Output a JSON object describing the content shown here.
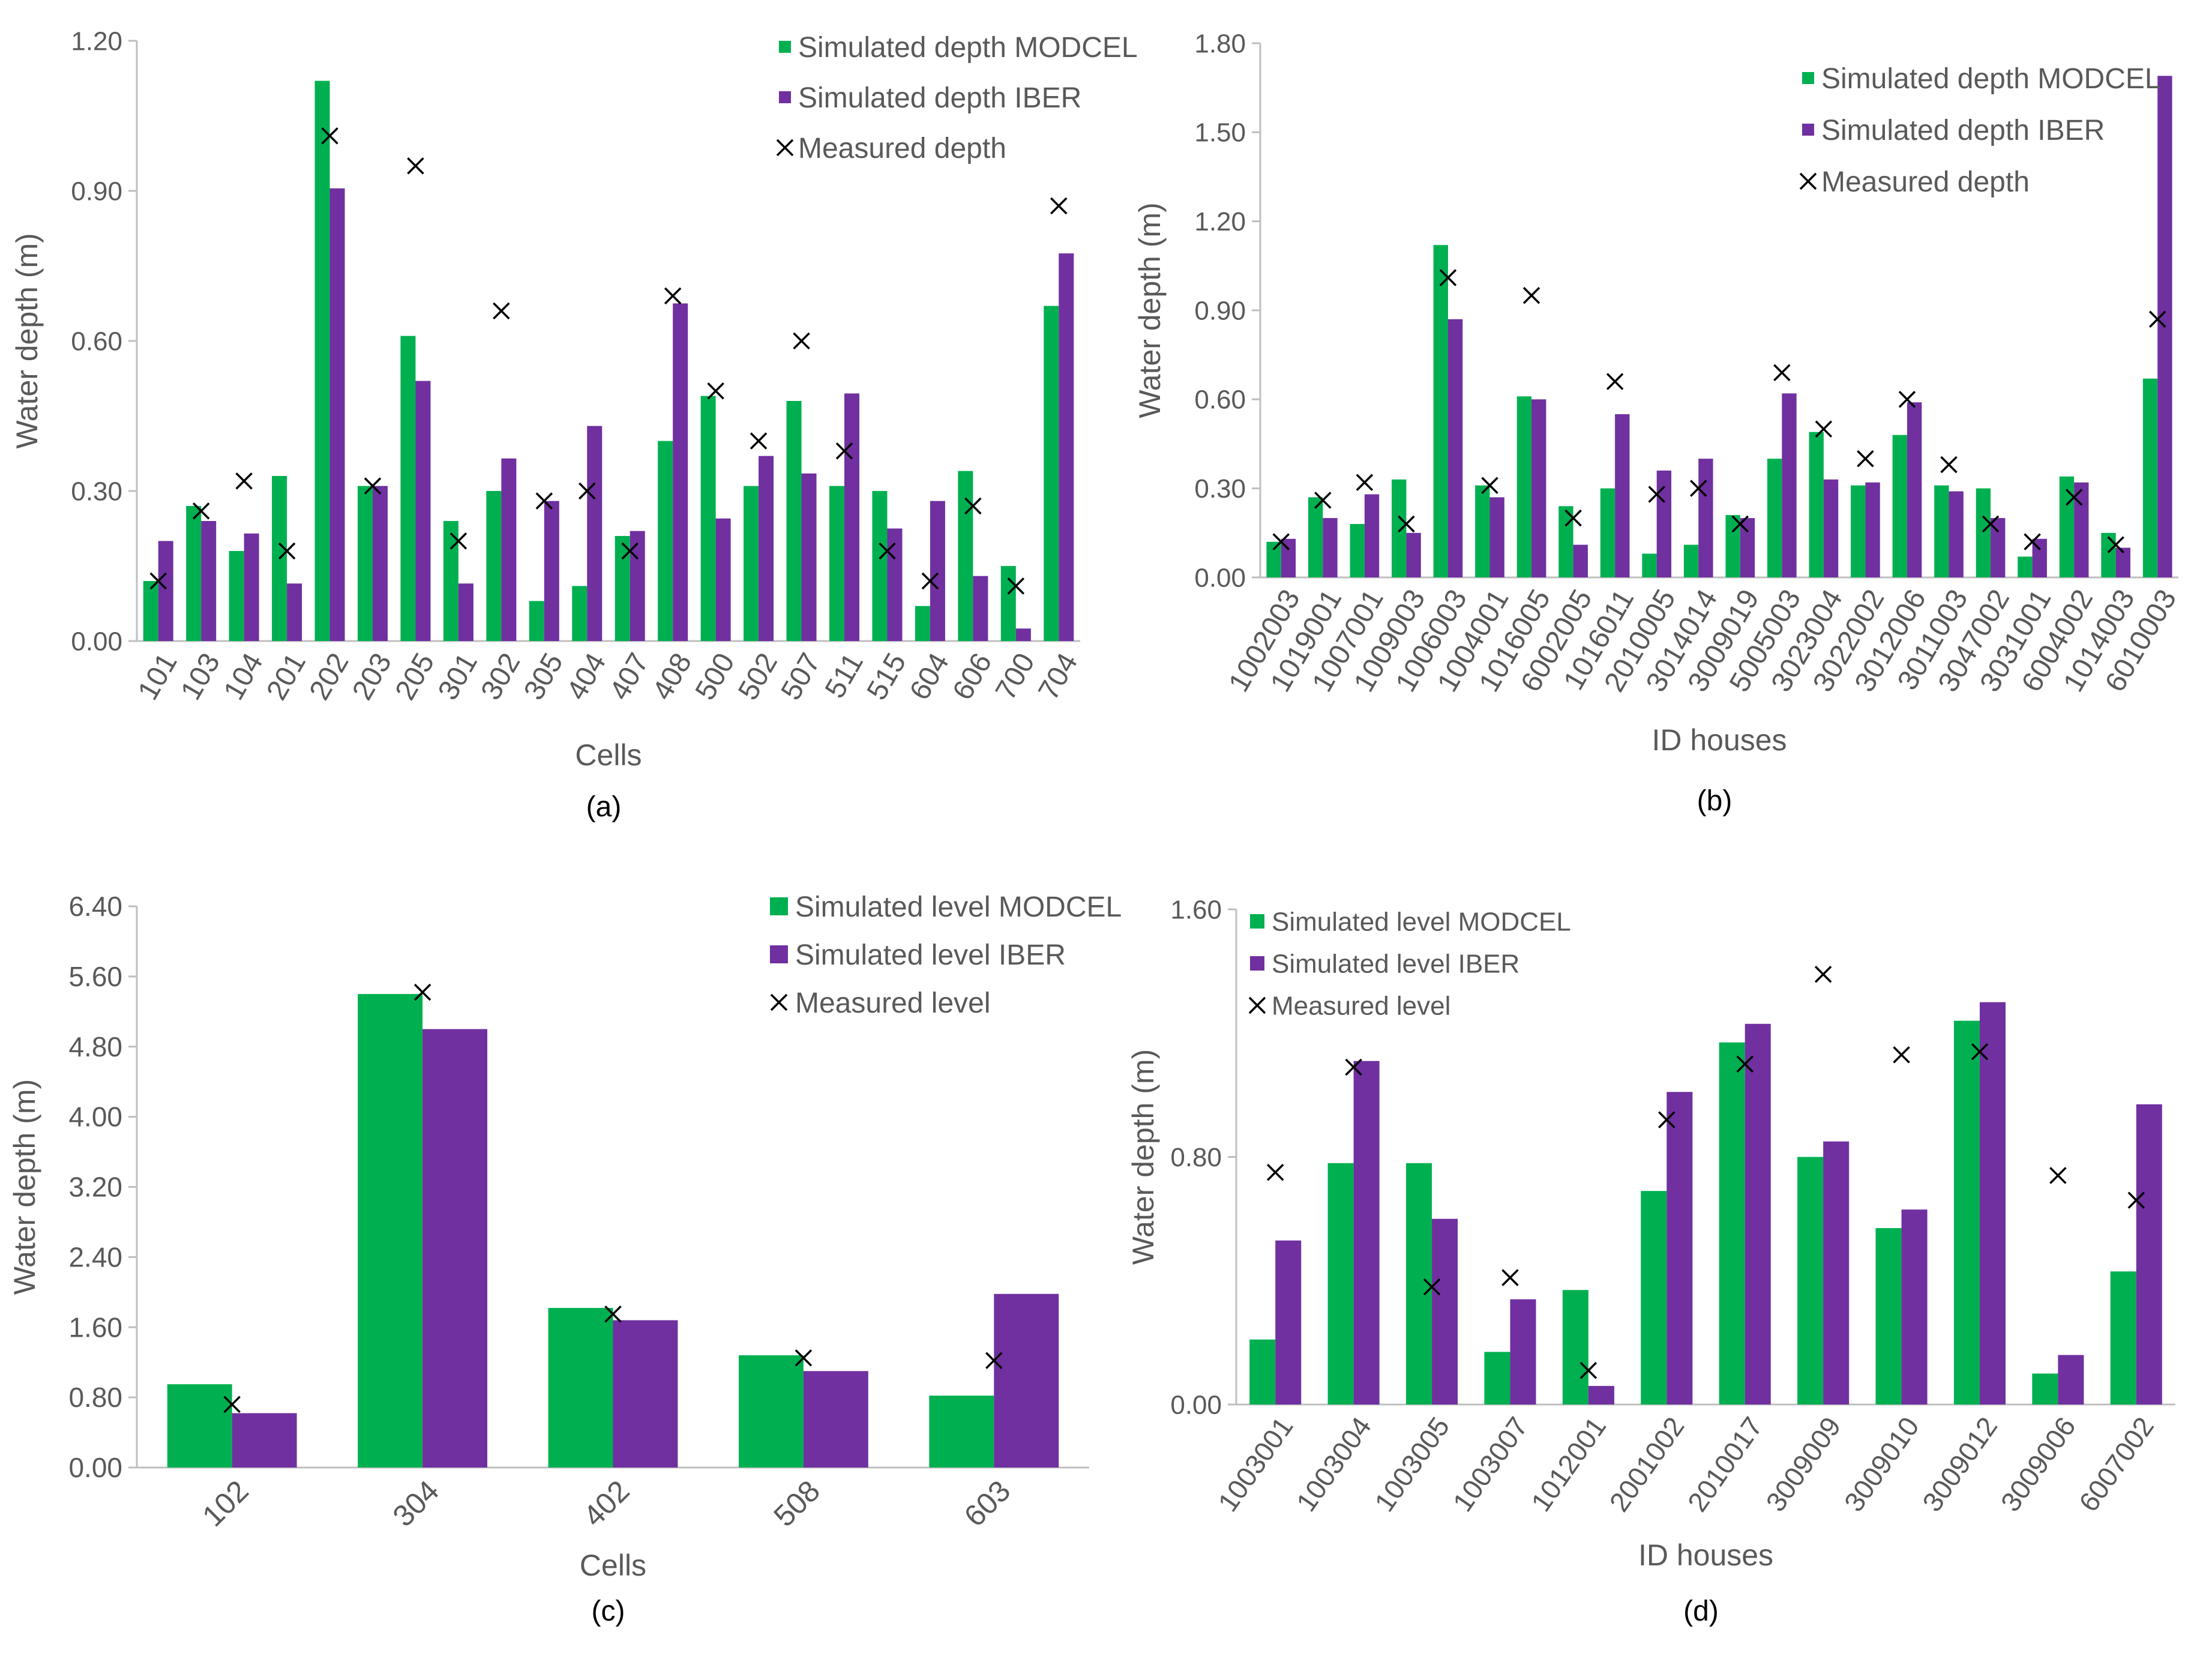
{
  "colors": {
    "modcel": "#00B050",
    "iber": "#7030A0",
    "axis": "#BFBFBF",
    "text": "#595959",
    "marker": "#000000"
  },
  "chart_data": [
    {
      "panel": "(a)",
      "type": "bar",
      "xlabel": "Cells",
      "ylabel": "Water depth (m)",
      "ylim": [
        0,
        1.2
      ],
      "yticks": [
        "0.00",
        "0.30",
        "0.60",
        "0.90",
        "1.20"
      ],
      "categories": [
        "101",
        "103",
        "104",
        "201",
        "202",
        "203",
        "205",
        "301",
        "302",
        "305",
        "404",
        "407",
        "408",
        "500",
        "502",
        "507",
        "511",
        "515",
        "604",
        "606",
        "700",
        "704"
      ],
      "series": [
        {
          "name": "Simulated depth MODCEL",
          "values": [
            0.12,
            0.27,
            0.18,
            0.33,
            1.12,
            0.31,
            0.61,
            0.24,
            0.3,
            0.08,
            0.11,
            0.21,
            0.4,
            0.49,
            0.31,
            0.48,
            0.31,
            0.3,
            0.07,
            0.34,
            0.15,
            0.67
          ]
        },
        {
          "name": "Simulated depth IBER",
          "values": [
            0.2,
            0.24,
            0.215,
            0.115,
            0.905,
            0.31,
            0.52,
            0.115,
            0.365,
            0.28,
            0.43,
            0.22,
            0.675,
            0.245,
            0.37,
            0.335,
            0.495,
            0.225,
            0.28,
            0.13,
            0.025,
            0.775
          ]
        },
        {
          "name": "Measured depth",
          "values": [
            0.12,
            0.26,
            0.32,
            0.18,
            1.01,
            0.31,
            0.95,
            0.2,
            0.66,
            0.28,
            0.3,
            0.18,
            0.69,
            0.5,
            0.4,
            0.6,
            0.38,
            0.18,
            0.12,
            0.27,
            0.11,
            0.87
          ]
        }
      ]
    },
    {
      "panel": "(b)",
      "type": "bar",
      "xlabel": "ID houses",
      "ylabel": "Water depth (m)",
      "ylim": [
        0,
        1.8
      ],
      "yticks": [
        "0.00",
        "0.30",
        "0.60",
        "0.90",
        "1.20",
        "1.50",
        "1.80"
      ],
      "categories": [
        "1002003",
        "1019001",
        "1007001",
        "1009003",
        "1006003",
        "1004001",
        "1016005",
        "6002005",
        "1016011",
        "2010005",
        "3014014",
        "3009019",
        "5005003",
        "3023004",
        "3022002",
        "3012006",
        "3011003",
        "3047002",
        "3031001",
        "6004002",
        "1014003",
        "6010003"
      ],
      "series": [
        {
          "name": "Simulated depth MODCEL",
          "values": [
            0.12,
            0.27,
            0.18,
            0.33,
            1.12,
            0.31,
            0.61,
            0.24,
            0.3,
            0.08,
            0.11,
            0.21,
            0.4,
            0.49,
            0.31,
            0.48,
            0.31,
            0.3,
            0.07,
            0.34,
            0.15,
            0.67
          ]
        },
        {
          "name": "Simulated depth IBER",
          "values": [
            0.13,
            0.2,
            0.28,
            0.15,
            0.87,
            0.27,
            0.6,
            0.11,
            0.55,
            0.36,
            0.4,
            0.2,
            0.62,
            0.33,
            0.32,
            0.59,
            0.29,
            0.2,
            0.13,
            0.32,
            0.1,
            1.69
          ]
        },
        {
          "name": "Measured depth",
          "values": [
            0.12,
            0.26,
            0.32,
            0.18,
            1.01,
            0.31,
            0.95,
            0.2,
            0.66,
            0.28,
            0.3,
            0.18,
            0.69,
            0.5,
            0.4,
            0.6,
            0.38,
            0.18,
            0.12,
            0.27,
            0.11,
            0.87
          ]
        }
      ]
    },
    {
      "panel": "(c)",
      "type": "bar",
      "xlabel": "Cells",
      "ylabel": "Water depth  (m)",
      "ylim": [
        0,
        6.4
      ],
      "yticks": [
        "0.00",
        "0.80",
        "1.60",
        "2.40",
        "3.20",
        "4.00",
        "4.80",
        "5.60",
        "6.40"
      ],
      "categories": [
        "102",
        "304",
        "402",
        "508",
        "603"
      ],
      "series": [
        {
          "name": "Simulated level MODCEL",
          "values": [
            0.95,
            5.4,
            1.82,
            1.28,
            0.82
          ]
        },
        {
          "name": "Simulated level IBER",
          "values": [
            0.62,
            5.0,
            1.68,
            1.1,
            1.98
          ]
        },
        {
          "name": "Measured level",
          "values": [
            0.72,
            5.42,
            1.75,
            1.25,
            1.22
          ]
        }
      ]
    },
    {
      "panel": "(d)",
      "type": "bar",
      "xlabel": "ID houses",
      "ylabel": "Water depth (m)",
      "ylim": [
        0,
        1.6
      ],
      "yticks": [
        "0.00",
        "0.80",
        "1.60"
      ],
      "categories": [
        "1003001",
        "1003004",
        "1003005",
        "1003007",
        "1012001",
        "2001002",
        "2010017",
        "3009009",
        "3009010",
        "3009012",
        "3009006",
        "6007002"
      ],
      "series": [
        {
          "name": "Simulated level MODCEL",
          "values": [
            0.21,
            0.78,
            0.78,
            0.17,
            0.37,
            0.69,
            1.17,
            0.8,
            0.57,
            1.24,
            0.1,
            0.43
          ]
        },
        {
          "name": "Simulated level IBER",
          "values": [
            0.53,
            1.11,
            0.6,
            0.34,
            0.06,
            1.01,
            1.23,
            0.85,
            0.63,
            1.3,
            0.16,
            0.97
          ]
        },
        {
          "name": "Measured level",
          "values": [
            0.75,
            1.09,
            0.38,
            0.41,
            0.11,
            0.92,
            1.1,
            1.39,
            1.13,
            1.14,
            0.74,
            0.66
          ]
        }
      ]
    }
  ]
}
